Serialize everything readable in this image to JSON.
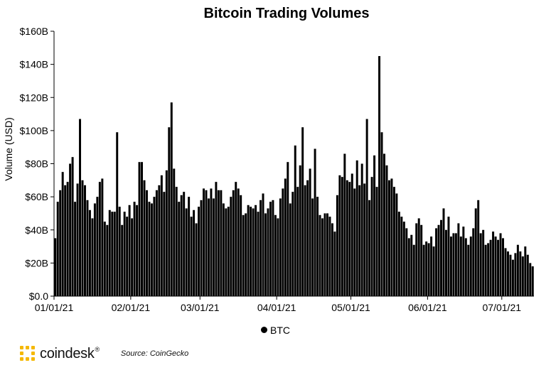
{
  "chart_data": {
    "type": "bar",
    "title": "Bitcoin Trading Volumes",
    "xlabel": "",
    "ylabel": "Volume (USD)",
    "ylim": [
      0,
      160
    ],
    "y_ticks": [
      "$0.0",
      "$20B",
      "$40B",
      "$60B",
      "$80B",
      "$100B",
      "$120B",
      "$140B",
      "$160B"
    ],
    "y_tick_values": [
      0,
      20,
      40,
      60,
      80,
      100,
      120,
      140,
      160
    ],
    "x_ticks": [
      "01/01/21",
      "02/01/21",
      "03/01/21",
      "04/01/21",
      "05/01/21",
      "06/01/21",
      "07/01/21"
    ],
    "x_tick_days": [
      0,
      31,
      59,
      90,
      120,
      151,
      181
    ],
    "grid": false,
    "legend_position": "bottom",
    "series": [
      {
        "name": "BTC",
        "color": "#000000",
        "unit": "billion USD",
        "values": [
          35,
          57,
          64,
          75,
          67,
          69,
          80,
          84,
          57,
          68,
          107,
          70,
          67,
          58,
          52,
          47,
          56,
          60,
          69,
          71,
          45,
          43,
          52,
          51,
          51,
          99,
          54,
          43,
          51,
          48,
          55,
          47,
          57,
          55,
          81,
          81,
          70,
          64,
          57,
          56,
          60,
          64,
          67,
          73,
          63,
          76,
          102,
          117,
          77,
          66,
          57,
          61,
          63,
          53,
          60,
          48,
          52,
          44,
          54,
          58,
          65,
          64,
          59,
          65,
          59,
          69,
          64,
          64,
          56,
          53,
          54,
          60,
          64,
          69,
          65,
          61,
          49,
          50,
          55,
          54,
          53,
          55,
          51,
          58,
          62,
          50,
          53,
          57,
          58,
          49,
          47,
          59,
          65,
          71,
          81,
          56,
          63,
          91,
          66,
          79,
          102,
          67,
          70,
          77,
          59,
          89,
          60,
          49,
          47,
          50,
          50,
          48,
          44,
          39,
          61,
          73,
          72,
          86,
          70,
          69,
          74,
          65,
          82,
          67,
          80,
          68,
          107,
          58,
          72,
          85,
          66,
          145,
          99,
          86,
          79,
          70,
          71,
          66,
          62,
          51,
          48,
          45,
          41,
          35,
          37,
          31,
          44,
          47,
          43,
          31,
          33,
          32,
          36,
          30,
          41,
          43,
          46,
          53,
          40,
          48,
          36,
          38,
          38,
          44,
          36,
          42,
          35,
          31,
          36,
          41,
          53,
          58,
          38,
          40,
          31,
          32,
          34,
          39,
          36,
          34,
          38,
          35,
          29,
          27,
          25,
          22,
          26,
          31,
          27,
          24,
          30,
          25,
          20,
          18
        ]
      }
    ]
  },
  "legend": {
    "label": "BTC"
  },
  "footer": {
    "brand": "coindesk",
    "brand_mark": "®",
    "source": "Source: CoinGecko"
  },
  "colors": {
    "bars": "#000000",
    "logo_accent": "#f5b800",
    "background": "#ffffff"
  }
}
